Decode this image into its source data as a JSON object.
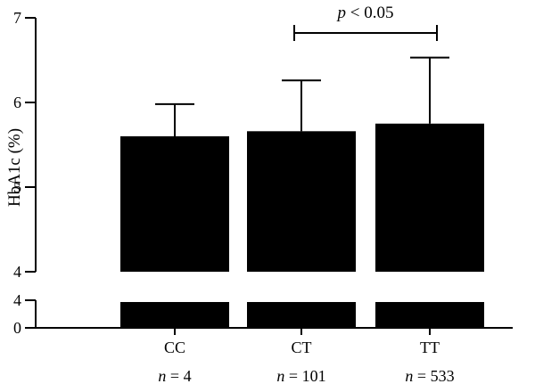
{
  "chart_data": {
    "type": "bar",
    "ylabel": "HbA1c (%)",
    "axis_break": true,
    "upper_segment": {
      "ylim": [
        4,
        7
      ],
      "ticks": [
        "4",
        "5",
        "6",
        "7"
      ]
    },
    "lower_segment": {
      "ylim": [
        0,
        4
      ],
      "ticks": [
        "0",
        "4"
      ]
    },
    "categories": [
      "CC",
      "CT",
      "TT"
    ],
    "sample_sizes": [
      {
        "var": "n",
        "text": " = 4"
      },
      {
        "var": "n",
        "text": " = 101"
      },
      {
        "var": "n",
        "text": " = 533"
      }
    ],
    "series": [
      {
        "values": [
          5.6,
          5.66,
          5.75
        ],
        "error_upper": [
          0.38,
          0.6,
          0.78
        ]
      }
    ],
    "bar_color": "#000000",
    "significance": [
      {
        "from": "CT",
        "to": "TT",
        "var": "p",
        "text": " < 0.05"
      }
    ],
    "grid": false
  }
}
